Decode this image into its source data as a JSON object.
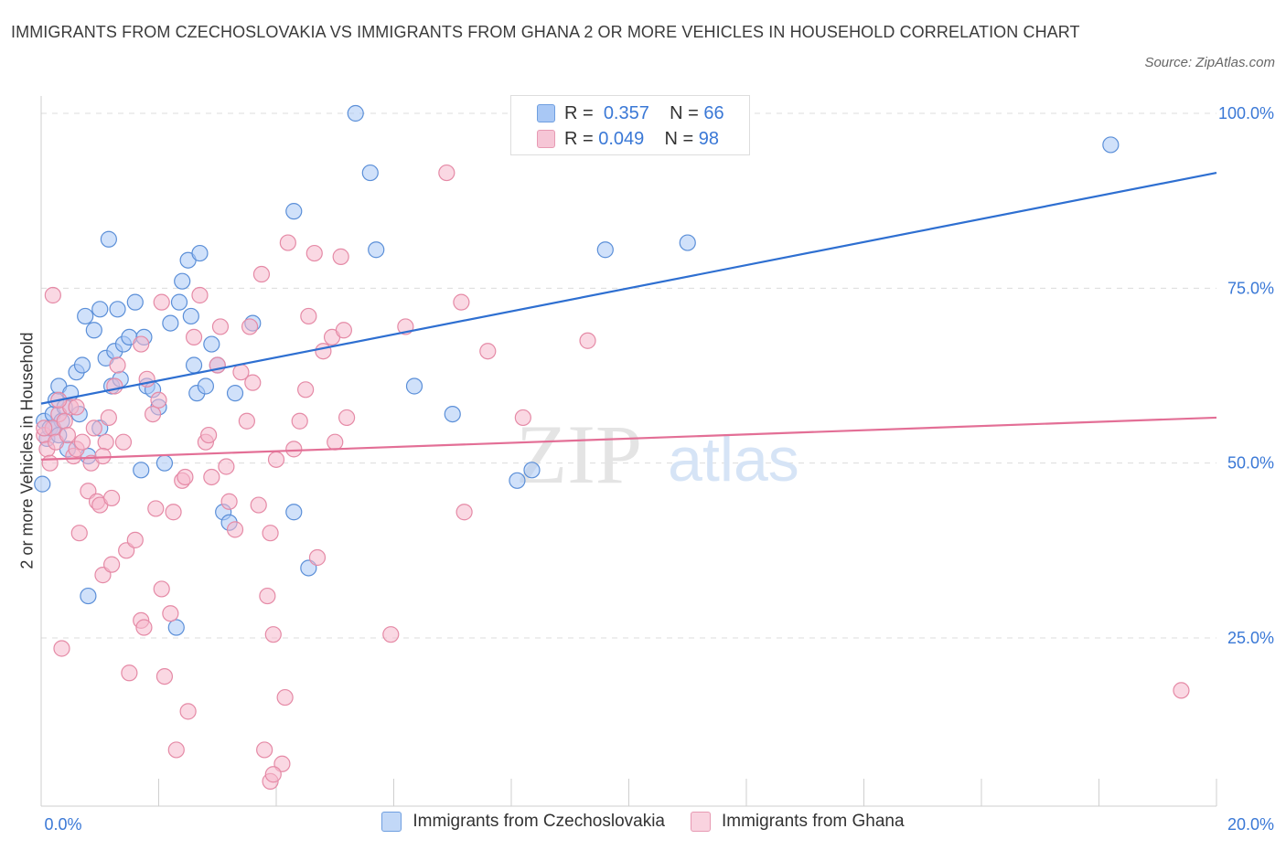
{
  "title": "IMMIGRANTS FROM CZECHOSLOVAKIA VS IMMIGRANTS FROM GHANA 2 OR MORE VEHICLES IN HOUSEHOLD CORRELATION CHART",
  "source": "Source: ZipAtlas.com",
  "watermark": {
    "zip": "ZIP",
    "atlas": "atlas"
  },
  "legend": {
    "rows": [
      {
        "r_label": "R =",
        "r_value": "0.357",
        "n_label": "N =",
        "n_value": "66",
        "color": "#a9c8f5"
      },
      {
        "r_label": "R =",
        "r_value": "0.049",
        "n_label": "N =",
        "n_value": "98",
        "color": "#f6b8cc"
      }
    ]
  },
  "chart_data": {
    "type": "scatter",
    "xlabel": "",
    "ylabel": "2 or more Vehicles in Household",
    "xlim": [
      0,
      20
    ],
    "ylim": [
      0,
      100
    ],
    "x_tick_labels": [
      "0.0%",
      "20.0%"
    ],
    "y_tick_labels": [
      "100.0%",
      "75.0%",
      "50.0%",
      "25.0%"
    ],
    "y_tick_values": [
      100,
      75,
      50,
      25
    ],
    "grid": true,
    "legend_position": "bottom",
    "series": [
      {
        "name": "Immigrants from Czechoslovakia",
        "color": "#a9c8f5",
        "stroke": "#5b8fd8",
        "trend": {
          "x": [
            0,
            20
          ],
          "y": [
            58.5,
            91.5
          ],
          "color": "#2e6fd1"
        },
        "points": [
          [
            0.05,
            56
          ],
          [
            0.1,
            53.5
          ],
          [
            0.15,
            55
          ],
          [
            0.2,
            57
          ],
          [
            0.25,
            59
          ],
          [
            0.3,
            61
          ],
          [
            0.35,
            56
          ],
          [
            0.4,
            58
          ],
          [
            0.45,
            52
          ],
          [
            0.5,
            60
          ],
          [
            0.6,
            63
          ],
          [
            0.65,
            57
          ],
          [
            0.7,
            64
          ],
          [
            0.75,
            71
          ],
          [
            0.8,
            51
          ],
          [
            0.9,
            69
          ],
          [
            1.0,
            72
          ],
          [
            1.1,
            65
          ],
          [
            1.15,
            82
          ],
          [
            1.2,
            61
          ],
          [
            1.25,
            66
          ],
          [
            1.3,
            72
          ],
          [
            1.35,
            62
          ],
          [
            1.4,
            67
          ],
          [
            1.5,
            68
          ],
          [
            1.6,
            73
          ],
          [
            1.7,
            49
          ],
          [
            1.75,
            68
          ],
          [
            1.8,
            61
          ],
          [
            1.9,
            60.5
          ],
          [
            2.0,
            58
          ],
          [
            2.1,
            50
          ],
          [
            2.2,
            70
          ],
          [
            2.3,
            26.5
          ],
          [
            2.35,
            73
          ],
          [
            2.4,
            76
          ],
          [
            2.5,
            79
          ],
          [
            2.55,
            71
          ],
          [
            2.6,
            64
          ],
          [
            2.65,
            60
          ],
          [
            2.7,
            80
          ],
          [
            2.8,
            61
          ],
          [
            2.9,
            67
          ],
          [
            3.0,
            64
          ],
          [
            3.1,
            43
          ],
          [
            3.2,
            41.5
          ],
          [
            3.3,
            60
          ],
          [
            3.6,
            70
          ],
          [
            4.3,
            86
          ],
          [
            4.3,
            43
          ],
          [
            4.55,
            35
          ],
          [
            5.35,
            100
          ],
          [
            5.6,
            91.5
          ],
          [
            5.7,
            80.5
          ],
          [
            6.35,
            61
          ],
          [
            7.0,
            57
          ],
          [
            8.1,
            47.5
          ],
          [
            8.35,
            49
          ],
          [
            9.6,
            80.5
          ],
          [
            11.0,
            81.5
          ],
          [
            18.2,
            95.5
          ],
          [
            0.2,
            55
          ],
          [
            0.3,
            54
          ],
          [
            0.8,
            31
          ],
          [
            1.0,
            55
          ],
          [
            0.02,
            47
          ]
        ]
      },
      {
        "name": "Immigrants from Ghana",
        "color": "#f6b8cc",
        "stroke": "#e58aa6",
        "trend": {
          "x": [
            0,
            20
          ],
          "y": [
            50.5,
            56.5
          ],
          "color": "#e36f96"
        },
        "points": [
          [
            0.05,
            54
          ],
          [
            0.1,
            52
          ],
          [
            0.15,
            50
          ],
          [
            0.2,
            55
          ],
          [
            0.25,
            53
          ],
          [
            0.3,
            57
          ],
          [
            0.35,
            23.5
          ],
          [
            0.4,
            56
          ],
          [
            0.45,
            54
          ],
          [
            0.5,
            58
          ],
          [
            0.55,
            51
          ],
          [
            0.6,
            52
          ],
          [
            0.65,
            40
          ],
          [
            0.7,
            53
          ],
          [
            0.8,
            46
          ],
          [
            0.85,
            50
          ],
          [
            0.9,
            55
          ],
          [
            0.95,
            44.5
          ],
          [
            1.0,
            44
          ],
          [
            1.05,
            34
          ],
          [
            1.1,
            53
          ],
          [
            1.15,
            56.5
          ],
          [
            1.2,
            35.5
          ],
          [
            1.25,
            61
          ],
          [
            1.3,
            64
          ],
          [
            1.4,
            53
          ],
          [
            1.45,
            37.5
          ],
          [
            1.5,
            20
          ],
          [
            1.6,
            39
          ],
          [
            1.7,
            27.5
          ],
          [
            1.75,
            26.5
          ],
          [
            1.8,
            62
          ],
          [
            1.9,
            57
          ],
          [
            1.95,
            43.5
          ],
          [
            2.0,
            59
          ],
          [
            2.05,
            32
          ],
          [
            2.1,
            19.5
          ],
          [
            2.2,
            28.5
          ],
          [
            2.25,
            43
          ],
          [
            2.3,
            9
          ],
          [
            2.4,
            47.5
          ],
          [
            2.45,
            48
          ],
          [
            2.5,
            14.5
          ],
          [
            2.6,
            68
          ],
          [
            2.7,
            74
          ],
          [
            2.8,
            53
          ],
          [
            2.85,
            54
          ],
          [
            2.9,
            48
          ],
          [
            3.0,
            64
          ],
          [
            3.05,
            69.5
          ],
          [
            3.15,
            49.5
          ],
          [
            3.2,
            44.5
          ],
          [
            3.3,
            40.5
          ],
          [
            3.4,
            63
          ],
          [
            3.5,
            56
          ],
          [
            3.55,
            69.5
          ],
          [
            3.6,
            61.5
          ],
          [
            3.7,
            44
          ],
          [
            3.75,
            77
          ],
          [
            3.85,
            31
          ],
          [
            3.9,
            40
          ],
          [
            3.95,
            25.5
          ],
          [
            4.0,
            50.5
          ],
          [
            4.1,
            7
          ],
          [
            4.15,
            16.5
          ],
          [
            4.2,
            81.5
          ],
          [
            4.3,
            52
          ],
          [
            4.4,
            56
          ],
          [
            4.5,
            60.5
          ],
          [
            4.55,
            71
          ],
          [
            4.65,
            80
          ],
          [
            4.7,
            36.5
          ],
          [
            4.8,
            66
          ],
          [
            4.95,
            68
          ],
          [
            5.0,
            53
          ],
          [
            5.1,
            79.5
          ],
          [
            5.15,
            69
          ],
          [
            5.2,
            56.5
          ],
          [
            5.95,
            25.5
          ],
          [
            6.2,
            69.5
          ],
          [
            6.9,
            91.5
          ],
          [
            7.15,
            73
          ],
          [
            7.2,
            43
          ],
          [
            7.6,
            66
          ],
          [
            8.2,
            56.5
          ],
          [
            9.3,
            67.5
          ],
          [
            0.2,
            74
          ],
          [
            0.3,
            59
          ],
          [
            0.6,
            58
          ],
          [
            1.05,
            51
          ],
          [
            1.2,
            45
          ],
          [
            1.7,
            67
          ],
          [
            2.05,
            73
          ],
          [
            3.8,
            9
          ],
          [
            3.9,
            4.5
          ],
          [
            3.95,
            5.5
          ],
          [
            19.4,
            17.5
          ],
          [
            0.05,
            55
          ]
        ]
      }
    ]
  }
}
